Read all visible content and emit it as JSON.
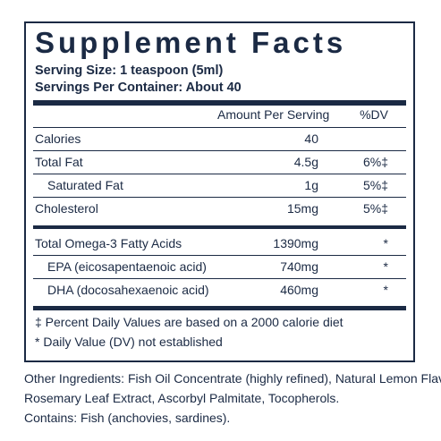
{
  "title": "Supplement Facts",
  "serving_size": "Serving Size: 1 teaspoon (5ml)",
  "servings_per_container": "Servings Per Container: About 40",
  "headers": {
    "amount": "Amount Per Serving",
    "dv": "%DV"
  },
  "rows": [
    {
      "name": "Calories",
      "amount": "40",
      "dv": ""
    },
    {
      "name": "Total Fat",
      "amount": "4.5g",
      "dv": "6%‡"
    },
    {
      "name": "Saturated Fat",
      "amount": "1g",
      "dv": "5%‡"
    },
    {
      "name": "Cholesterol",
      "amount": "15mg",
      "dv": "5%‡"
    },
    {
      "name": "Total Omega-3 Fatty Acids",
      "amount": "1390mg",
      "dv": "*"
    },
    {
      "name": "EPA (eicosapentaenoic acid)",
      "amount": "740mg",
      "dv": "*"
    },
    {
      "name": "DHA (docosahexaenoic acid)",
      "amount": "460mg",
      "dv": "*"
    }
  ],
  "footnotes": [
    "‡ Percent Daily Values are based on a 2000 calorie diet",
    "* Daily Value (DV) not established"
  ],
  "other_ingredients": [
    "Other Ingredients: Fish Oil Concentrate (highly refined), Natural Lemon Flavor,",
    "Rosemary Leaf Extract, Ascorbyl Palmitate, Tocopherols."
  ],
  "contains": "Contains: Fish (anchovies, sardines)."
}
